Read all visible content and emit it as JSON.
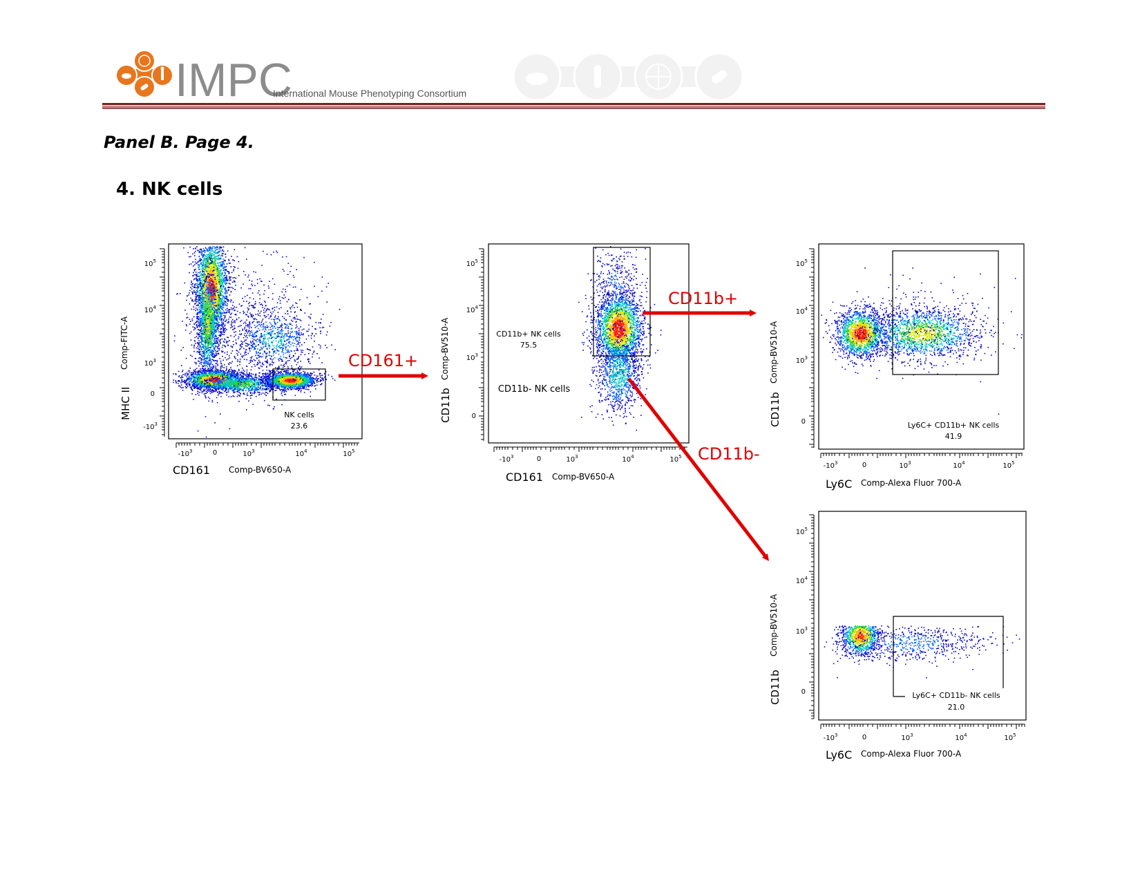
{
  "header": {
    "logo_text": "IMPC",
    "logo_subtitle": "International Mouse Phenotyping Consortium",
    "accent_color": "#E8761E",
    "rule_color": "#7A1F1F"
  },
  "page": {
    "panel_label": "Panel B. Page 4.",
    "section_title": "4. NK cells"
  },
  "arrows": {
    "cd161_pos": "CD161+",
    "cd11b_pos": "CD11b+",
    "cd11b_neg": "CD11b-",
    "color": "#E00000"
  },
  "chart_data": [
    {
      "type": "scatter",
      "id": "plot1",
      "x_scale": "biexponential",
      "y_scale": "biexponential",
      "xlabel_marker": "CD161",
      "xlabel_channel": "Comp-BV650-A",
      "ylabel_marker": "MHC II",
      "ylabel_channel": "Comp-FITC-A",
      "x_ticks": [
        "-10^3",
        "0",
        "10^3",
        "10^4",
        "10^5"
      ],
      "y_ticks": [
        "-10^3",
        "0",
        "10^3",
        "10^4",
        "10^5"
      ],
      "populations": [
        {
          "x": 0.3,
          "y": 1.1,
          "note": "CD161- MHCII- cluster"
        },
        {
          "x": 0.2,
          "y": 4.0,
          "note": "CD161- MHCII+ cluster"
        },
        {
          "x": 3.9,
          "y": 0.0,
          "note": "NK cell cluster"
        }
      ],
      "gates": [
        {
          "name": "NK cells",
          "value": "23.6",
          "x_range": [
            3.5,
            4.3
          ],
          "y_range": [
            -0.3,
            3.2
          ]
        }
      ]
    },
    {
      "type": "scatter",
      "id": "plot2",
      "x_scale": "biexponential",
      "y_scale": "biexponential",
      "xlabel_marker": "CD161",
      "xlabel_channel": "Comp-BV650-A",
      "ylabel_marker": "CD11b",
      "ylabel_channel": "Comp-BV510-A",
      "x_ticks": [
        "-10^3",
        "0",
        "10^3",
        "10^4",
        "10^5"
      ],
      "y_ticks": [
        "0",
        "10^3",
        "10^4",
        "10^5"
      ],
      "gates": [
        {
          "name": "CD11b+ NK cells",
          "value": "75.5",
          "x_range": [
            3.5,
            4.6
          ],
          "y_range": [
            3.0,
            5.0
          ]
        },
        {
          "name": "CD11b- NK cells",
          "value": "",
          "x_range": [
            3.5,
            4.6
          ],
          "y_range": [
            0,
            3.0
          ]
        }
      ]
    },
    {
      "type": "scatter",
      "id": "plot3",
      "x_scale": "biexponential",
      "y_scale": "biexponential",
      "xlabel_marker": "Ly6C",
      "xlabel_channel": "Comp-Alexa Fluor 700-A",
      "ylabel_marker": "CD11b",
      "ylabel_channel": "Comp-BV510-A",
      "x_ticks": [
        "-10^3",
        "0",
        "10^3",
        "10^4",
        "10^5"
      ],
      "y_ticks": [
        "0",
        "10^3",
        "10^4",
        "10^5"
      ],
      "gates": [
        {
          "name": "Ly6C+ CD11b+ NK cells",
          "value": "41.9",
          "x_range": [
            3.0,
            4.7
          ],
          "y_range": [
            2.7,
            5.0
          ]
        }
      ]
    },
    {
      "type": "scatter",
      "id": "plot4",
      "x_scale": "biexponential",
      "y_scale": "biexponential",
      "xlabel_marker": "Ly6C",
      "xlabel_channel": "Comp-Alexa Fluor 700-A",
      "ylabel_marker": "CD11b",
      "ylabel_channel": "Comp-BV510-A",
      "x_ticks": [
        "-10^3",
        "0",
        "10^3",
        "10^4",
        "10^5"
      ],
      "y_ticks": [
        "0",
        "10^3",
        "10^4",
        "10^5"
      ],
      "gates": [
        {
          "name": "Ly6C+ CD11b- NK cells",
          "value": "21.0",
          "x_range": [
            3.0,
            4.8
          ],
          "y_range": [
            0,
            3.2
          ]
        }
      ]
    }
  ]
}
